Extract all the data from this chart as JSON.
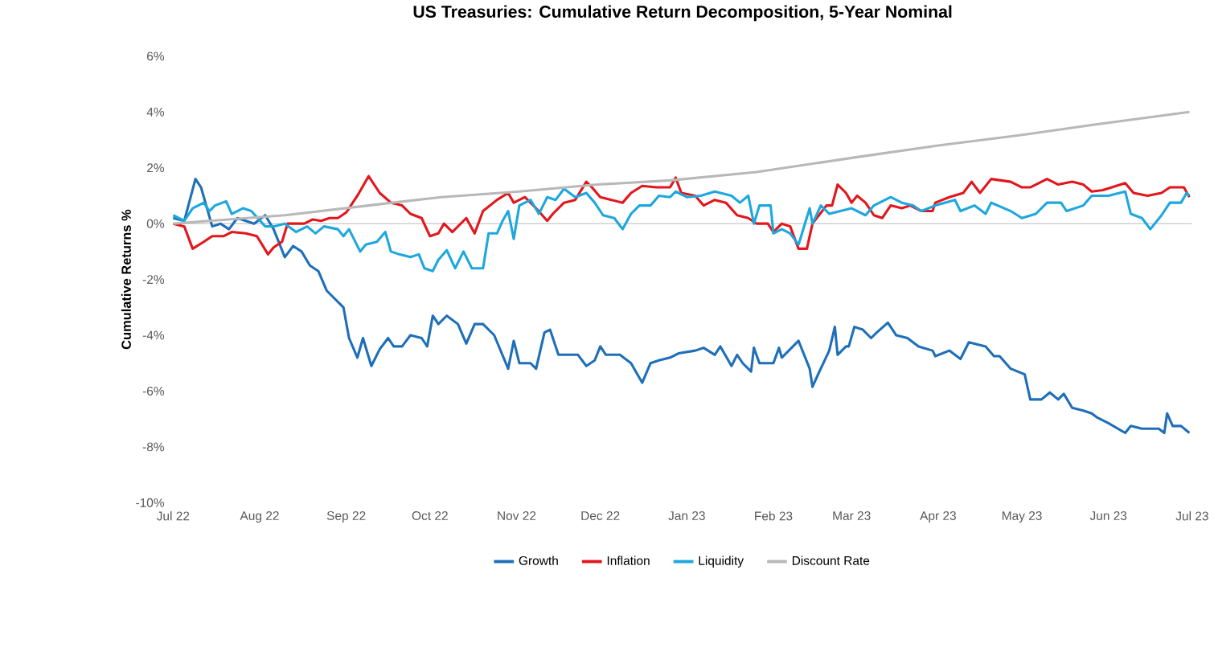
{
  "chart_data": {
    "type": "line",
    "title": "US Treasuries: Cumulative Return Decomposition, 5-Year Nominal",
    "ylabel": "Cumulative Returns %",
    "xlim": [
      "2022-07-01",
      "2023-07-01"
    ],
    "xticks": [
      {
        "value": "2022-07-01",
        "label": "Jul 22"
      },
      {
        "value": "2022-08-01",
        "label": "Aug 22"
      },
      {
        "value": "2022-09-01",
        "label": "Sep 22"
      },
      {
        "value": "2022-10-01",
        "label": "Oct 22"
      },
      {
        "value": "2022-11-01",
        "label": "Nov 22"
      },
      {
        "value": "2022-12-01",
        "label": "Dec 22"
      },
      {
        "value": "2023-01-01",
        "label": "Jan 23"
      },
      {
        "value": "2023-02-01",
        "label": "Feb 23"
      },
      {
        "value": "2023-03-01",
        "label": "Mar 23"
      },
      {
        "value": "2023-04-01",
        "label": "Apr 23"
      },
      {
        "value": "2023-05-01",
        "label": "May 23"
      },
      {
        "value": "2023-06-01",
        "label": "Jun 23"
      },
      {
        "value": "2023-07-01",
        "label": "Jul 23"
      }
    ],
    "ylim": [
      -10,
      6
    ],
    "yticks": [
      {
        "value": -10,
        "label": "-10%"
      },
      {
        "value": -8,
        "label": "-8%"
      },
      {
        "value": -6,
        "label": "-6%"
      },
      {
        "value": -4,
        "label": "-4%"
      },
      {
        "value": -2,
        "label": "-2%"
      },
      {
        "value": 0,
        "label": "0%"
      },
      {
        "value": 2,
        "label": "2%"
      },
      {
        "value": 4,
        "label": "4%"
      },
      {
        "value": 6,
        "label": "6%"
      }
    ],
    "grid": false,
    "legend": "bottom",
    "marker": "none",
    "line_style": "solid",
    "ref_lines": [
      {
        "axis": "y",
        "value": 0,
        "color": "#d0d0d0"
      }
    ],
    "series": [
      {
        "name": "Growth",
        "color": "#1f6fb8",
        "x": [
          "2022-07-01",
          "2022-07-05",
          "2022-07-09",
          "2022-07-11",
          "2022-07-15",
          "2022-07-18",
          "2022-07-21",
          "2022-07-24",
          "2022-07-30",
          "2022-08-03",
          "2022-08-06",
          "2022-08-10",
          "2022-08-13",
          "2022-08-16",
          "2022-08-19",
          "2022-08-22",
          "2022-08-25",
          "2022-08-31",
          "2022-09-02",
          "2022-09-05",
          "2022-09-07",
          "2022-09-10",
          "2022-09-13",
          "2022-09-16",
          "2022-09-18",
          "2022-09-21",
          "2022-09-24",
          "2022-09-28",
          "2022-09-30",
          "2022-10-02",
          "2022-10-04",
          "2022-10-07",
          "2022-10-11",
          "2022-10-14",
          "2022-10-17",
          "2022-10-20",
          "2022-10-24",
          "2022-10-29",
          "2022-10-31",
          "2022-11-02",
          "2022-11-06",
          "2022-11-08",
          "2022-11-11",
          "2022-11-13",
          "2022-11-16",
          "2022-11-20",
          "2022-11-23",
          "2022-11-26",
          "2022-11-29",
          "2022-12-01",
          "2022-12-03",
          "2022-12-08",
          "2022-12-12",
          "2022-12-16",
          "2022-12-19",
          "2022-12-22",
          "2022-12-26",
          "2022-12-29",
          "2023-01-04",
          "2023-01-07",
          "2023-01-11",
          "2023-01-13",
          "2023-01-17",
          "2023-01-19",
          "2023-01-21",
          "2023-01-24",
          "2023-01-25",
          "2023-01-27",
          "2023-02-01",
          "2023-02-03",
          "2023-02-04",
          "2023-02-10",
          "2023-02-14",
          "2023-02-15",
          "2023-02-17",
          "2023-02-21",
          "2023-02-23",
          "2023-02-24",
          "2023-02-27",
          "2023-02-28",
          "2023-03-02",
          "2023-03-05",
          "2023-03-08",
          "2023-03-10",
          "2023-03-14",
          "2023-03-17",
          "2023-03-21",
          "2023-03-25",
          "2023-03-30",
          "2023-03-31",
          "2023-04-05",
          "2023-04-09",
          "2023-04-12",
          "2023-04-18",
          "2023-04-21",
          "2023-04-23",
          "2023-04-27",
          "2023-05-02",
          "2023-05-04",
          "2023-05-08",
          "2023-05-11",
          "2023-05-14",
          "2023-05-16",
          "2023-05-19",
          "2023-05-23",
          "2023-05-26",
          "2023-05-28",
          "2023-06-01",
          "2023-06-07",
          "2023-06-09",
          "2023-06-13",
          "2023-06-19",
          "2023-06-21",
          "2023-06-22",
          "2023-06-24",
          "2023-06-27",
          "2023-06-30"
        ],
        "values": [
          0.2,
          0.1,
          1.6,
          1.3,
          -0.1,
          0.0,
          -0.2,
          0.2,
          0.0,
          0.3,
          -0.2,
          -1.2,
          -0.8,
          -1.0,
          -1.5,
          -1.7,
          -2.4,
          -3.0,
          -4.1,
          -4.8,
          -4.1,
          -5.1,
          -4.5,
          -4.1,
          -4.4,
          -4.4,
          -4.0,
          -4.1,
          -4.4,
          -3.3,
          -3.6,
          -3.3,
          -3.6,
          -4.3,
          -3.6,
          -3.6,
          -4.0,
          -5.2,
          -4.2,
          -5.0,
          -5.0,
          -5.2,
          -3.9,
          -3.8,
          -4.7,
          -4.7,
          -4.7,
          -5.1,
          -4.9,
          -4.4,
          -4.7,
          -4.7,
          -5.0,
          -5.7,
          -5.0,
          -4.9,
          -4.8,
          -4.65,
          -4.55,
          -4.45,
          -4.7,
          -4.4,
          -5.1,
          -4.7,
          -5.0,
          -5.3,
          -4.45,
          -5.0,
          -5.0,
          -4.45,
          -4.8,
          -4.2,
          -5.2,
          -5.85,
          -5.4,
          -4.55,
          -3.7,
          -4.7,
          -4.4,
          -4.4,
          -3.7,
          -3.8,
          -4.1,
          -3.9,
          -3.55,
          -4.0,
          -4.1,
          -4.4,
          -4.55,
          -4.75,
          -4.55,
          -4.85,
          -4.25,
          -4.4,
          -4.75,
          -4.75,
          -5.2,
          -5.4,
          -6.3,
          -6.3,
          -6.05,
          -6.3,
          -6.1,
          -6.6,
          -6.7,
          -6.8,
          -6.95,
          -7.15,
          -7.5,
          -7.25,
          -7.35,
          -7.35,
          -7.5,
          -6.8,
          -7.25,
          -7.25,
          -7.5
        ]
      },
      {
        "name": "Inflation",
        "color": "#e3161c",
        "x": [
          "2022-07-01",
          "2022-07-05",
          "2022-07-08",
          "2022-07-12",
          "2022-07-15",
          "2022-07-19",
          "2022-07-22",
          "2022-07-27",
          "2022-07-31",
          "2022-08-04",
          "2022-08-06",
          "2022-08-09",
          "2022-08-11",
          "2022-08-17",
          "2022-08-20",
          "2022-08-23",
          "2022-08-26",
          "2022-08-29",
          "2022-09-01",
          "2022-09-05",
          "2022-09-09",
          "2022-09-13",
          "2022-09-17",
          "2022-09-21",
          "2022-09-24",
          "2022-09-28",
          "2022-10-01",
          "2022-10-04",
          "2022-10-06",
          "2022-10-09",
          "2022-10-14",
          "2022-10-17",
          "2022-10-20",
          "2022-10-25",
          "2022-10-29",
          "2022-10-31",
          "2022-11-04",
          "2022-11-08",
          "2022-11-12",
          "2022-11-14",
          "2022-11-18",
          "2022-11-22",
          "2022-11-26",
          "2022-11-28",
          "2022-12-01",
          "2022-12-05",
          "2022-12-09",
          "2022-12-12",
          "2022-12-16",
          "2022-12-21",
          "2022-12-26",
          "2022-12-28",
          "2022-12-30",
          "2023-01-04",
          "2023-01-07",
          "2023-01-11",
          "2023-01-15",
          "2023-01-19",
          "2023-01-23",
          "2023-01-26",
          "2023-01-30",
          "2023-02-01",
          "2023-02-04",
          "2023-02-07",
          "2023-02-10",
          "2023-02-13",
          "2023-02-15",
          "2023-02-20",
          "2023-02-22",
          "2023-02-24",
          "2023-02-27",
          "2023-03-01",
          "2023-03-03",
          "2023-03-06",
          "2023-03-09",
          "2023-03-12",
          "2023-03-15",
          "2023-03-19",
          "2023-03-22",
          "2023-03-26",
          "2023-03-30",
          "2023-03-31",
          "2023-04-05",
          "2023-04-10",
          "2023-04-13",
          "2023-04-16",
          "2023-04-20",
          "2023-04-27",
          "2023-05-01",
          "2023-05-04",
          "2023-05-10",
          "2023-05-14",
          "2023-05-19",
          "2023-05-23",
          "2023-05-26",
          "2023-05-30",
          "2023-06-07",
          "2023-06-10",
          "2023-06-15",
          "2023-06-20",
          "2023-06-23",
          "2023-06-28",
          "2023-06-30"
        ],
        "values": [
          0.0,
          -0.1,
          -0.9,
          -0.65,
          -0.45,
          -0.45,
          -0.3,
          -0.35,
          -0.45,
          -1.1,
          -0.85,
          -0.65,
          0.0,
          0.0,
          0.15,
          0.1,
          0.2,
          0.2,
          0.4,
          1.0,
          1.7,
          1.1,
          0.75,
          0.65,
          0.35,
          0.2,
          -0.45,
          -0.35,
          0.0,
          -0.3,
          0.2,
          -0.35,
          0.45,
          0.85,
          1.1,
          0.75,
          0.95,
          0.55,
          0.1,
          0.35,
          0.75,
          0.85,
          1.5,
          1.3,
          0.95,
          0.85,
          0.75,
          1.1,
          1.35,
          1.3,
          1.3,
          1.65,
          1.1,
          1.0,
          0.65,
          0.85,
          0.75,
          0.3,
          0.2,
          0.0,
          0.0,
          -0.3,
          0.0,
          -0.1,
          -0.9,
          -0.9,
          0.0,
          0.65,
          0.65,
          1.4,
          1.1,
          0.75,
          1.0,
          0.75,
          0.3,
          0.2,
          0.65,
          0.55,
          0.65,
          0.45,
          0.45,
          0.75,
          0.95,
          1.1,
          1.5,
          1.1,
          1.6,
          1.5,
          1.3,
          1.3,
          1.6,
          1.4,
          1.5,
          1.4,
          1.15,
          1.2,
          1.45,
          1.1,
          1.0,
          1.1,
          1.3,
          1.3,
          0.95
        ]
      },
      {
        "name": "Liquidity",
        "color": "#1ea7df",
        "x": [
          "2022-07-01",
          "2022-07-05",
          "2022-07-08",
          "2022-07-12",
          "2022-07-14",
          "2022-07-16",
          "2022-07-20",
          "2022-07-22",
          "2022-07-26",
          "2022-07-29",
          "2022-08-03",
          "2022-08-06",
          "2022-08-10",
          "2022-08-14",
          "2022-08-18",
          "2022-08-21",
          "2022-08-24",
          "2022-08-29",
          "2022-08-31",
          "2022-09-02",
          "2022-09-06",
          "2022-09-08",
          "2022-09-12",
          "2022-09-15",
          "2022-09-17",
          "2022-09-20",
          "2022-09-24",
          "2022-09-27",
          "2022-09-29",
          "2022-10-02",
          "2022-10-04",
          "2022-10-07",
          "2022-10-10",
          "2022-10-13",
          "2022-10-16",
          "2022-10-20",
          "2022-10-22",
          "2022-10-25",
          "2022-10-27",
          "2022-10-29",
          "2022-10-31",
          "2022-11-02",
          "2022-11-06",
          "2022-11-09",
          "2022-11-12",
          "2022-11-15",
          "2022-11-18",
          "2022-11-22",
          "2022-11-26",
          "2022-11-29",
          "2022-12-02",
          "2022-12-06",
          "2022-12-09",
          "2022-12-12",
          "2022-12-15",
          "2022-12-19",
          "2022-12-22",
          "2022-12-26",
          "2022-12-28",
          "2023-01-01",
          "2023-01-06",
          "2023-01-11",
          "2023-01-17",
          "2023-01-20",
          "2023-01-23",
          "2023-01-25",
          "2023-01-27",
          "2023-01-31",
          "2023-02-01",
          "2023-02-04",
          "2023-02-07",
          "2023-02-10",
          "2023-02-14",
          "2023-02-15",
          "2023-02-18",
          "2023-02-21",
          "2023-02-25",
          "2023-03-01",
          "2023-03-06",
          "2023-03-09",
          "2023-03-15",
          "2023-03-19",
          "2023-03-23",
          "2023-03-26",
          "2023-03-31",
          "2023-04-07",
          "2023-04-09",
          "2023-04-14",
          "2023-04-18",
          "2023-04-20",
          "2023-04-27",
          "2023-05-01",
          "2023-05-06",
          "2023-05-10",
          "2023-05-15",
          "2023-05-17",
          "2023-05-23",
          "2023-05-26",
          "2023-06-01",
          "2023-06-07",
          "2023-06-09",
          "2023-06-13",
          "2023-06-16",
          "2023-06-20",
          "2023-06-23",
          "2023-06-27",
          "2023-06-29",
          "2023-06-30"
        ],
        "values": [
          0.3,
          0.1,
          0.55,
          0.75,
          0.45,
          0.65,
          0.8,
          0.35,
          0.55,
          0.45,
          -0.1,
          -0.1,
          0.0,
          -0.3,
          -0.1,
          -0.35,
          -0.1,
          -0.2,
          -0.45,
          -0.2,
          -1.0,
          -0.75,
          -0.65,
          -0.3,
          -1.0,
          -1.1,
          -1.2,
          -1.1,
          -1.6,
          -1.7,
          -1.3,
          -0.95,
          -1.6,
          -1.0,
          -1.6,
          -1.6,
          -0.35,
          -0.35,
          0.1,
          0.45,
          -0.55,
          0.65,
          0.85,
          0.35,
          0.95,
          0.85,
          1.25,
          0.95,
          1.1,
          0.75,
          0.3,
          0.2,
          -0.2,
          0.35,
          0.65,
          0.65,
          1.0,
          0.95,
          1.15,
          0.95,
          1.0,
          1.15,
          1.0,
          0.75,
          1.0,
          0.0,
          0.65,
          0.65,
          -0.35,
          -0.2,
          -0.35,
          -0.75,
          0.55,
          0.0,
          0.65,
          0.35,
          0.45,
          0.55,
          0.3,
          0.65,
          0.95,
          0.75,
          0.65,
          0.45,
          0.65,
          0.85,
          0.45,
          0.65,
          0.35,
          0.75,
          0.45,
          0.2,
          0.35,
          0.75,
          0.75,
          0.45,
          0.65,
          1.0,
          1.0,
          1.15,
          0.35,
          0.2,
          -0.2,
          0.3,
          0.75,
          0.75,
          1.1,
          1.0
        ]
      },
      {
        "name": "Discount Rate",
        "color": "#b8b8b8",
        "x": [
          "2022-07-01",
          "2022-08-10",
          "2022-09-09",
          "2022-10-05",
          "2022-11-02",
          "2022-11-30",
          "2022-12-26",
          "2023-01-26",
          "2023-03-04",
          "2023-04-01",
          "2023-04-29",
          "2023-05-27",
          "2023-06-30"
        ],
        "values": [
          0.0,
          0.3,
          0.65,
          0.95,
          1.15,
          1.4,
          1.55,
          1.85,
          2.4,
          2.8,
          3.15,
          3.55,
          4.0
        ]
      }
    ]
  }
}
